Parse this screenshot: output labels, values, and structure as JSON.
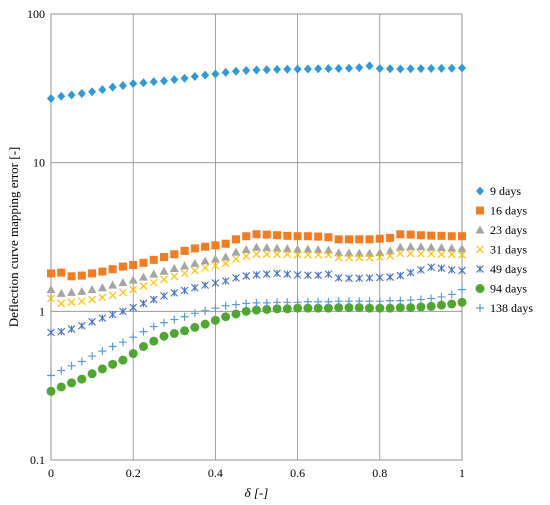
{
  "chart_data": {
    "type": "scatter",
    "xlabel": "δ [-]",
    "ylabel": "Deflection curve mapping error [-]",
    "xlim": [
      0,
      1
    ],
    "ylim": [
      0.1,
      100
    ],
    "yscale": "log",
    "x_ticks": [
      "0",
      "0.2",
      "0.4",
      "0.6",
      "0.8",
      "1"
    ],
    "y_ticks": [
      "0.1",
      "1",
      "10",
      "100"
    ],
    "grid": true,
    "legend_position": "right",
    "x": [
      0,
      0.025,
      0.05,
      0.075,
      0.1,
      0.125,
      0.15,
      0.175,
      0.2,
      0.225,
      0.25,
      0.275,
      0.3,
      0.325,
      0.35,
      0.375,
      0.4,
      0.425,
      0.45,
      0.475,
      0.5,
      0.525,
      0.55,
      0.575,
      0.6,
      0.625,
      0.65,
      0.675,
      0.7,
      0.725,
      0.75,
      0.775,
      0.8,
      0.825,
      0.85,
      0.875,
      0.9,
      0.925,
      0.95,
      0.975,
      1
    ],
    "series": [
      {
        "name": "9 days",
        "marker": "diamond",
        "color": "#2E9AD8",
        "values": [
          27,
          28,
          28.5,
          29.2,
          30,
          31,
          32.2,
          33,
          34,
          34.5,
          35,
          35.5,
          36.2,
          37,
          38,
          38.8,
          39.5,
          40.5,
          41.2,
          41.7,
          42,
          42.2,
          42.4,
          42.5,
          42.6,
          42.7,
          42.8,
          42.9,
          43,
          43.2,
          43.6,
          44.8,
          43,
          42.8,
          42.7,
          42.8,
          42.9,
          43,
          43.1,
          43.2,
          43.3
        ]
      },
      {
        "name": "16 days",
        "marker": "square",
        "color": "#F47B20",
        "values": [
          1.8,
          1.82,
          1.72,
          1.74,
          1.8,
          1.85,
          1.92,
          2.0,
          2.05,
          2.12,
          2.22,
          2.32,
          2.42,
          2.55,
          2.65,
          2.72,
          2.78,
          2.85,
          3.05,
          3.2,
          3.3,
          3.28,
          3.25,
          3.22,
          3.2,
          3.2,
          3.18,
          3.15,
          3.05,
          3.05,
          3.05,
          3.05,
          3.08,
          3.12,
          3.3,
          3.28,
          3.25,
          3.23,
          3.22,
          3.2,
          3.2
        ]
      },
      {
        "name": "23 days",
        "marker": "triangle",
        "color": "#A5A5A5",
        "values": [
          1.4,
          1.32,
          1.34,
          1.36,
          1.4,
          1.44,
          1.5,
          1.56,
          1.62,
          1.7,
          1.78,
          1.86,
          1.94,
          2.02,
          2.1,
          2.18,
          2.25,
          2.32,
          2.5,
          2.6,
          2.7,
          2.68,
          2.66,
          2.64,
          2.62,
          2.62,
          2.6,
          2.58,
          2.48,
          2.47,
          2.46,
          2.46,
          2.48,
          2.55,
          2.7,
          2.72,
          2.72,
          2.7,
          2.68,
          2.66,
          2.64
        ]
      },
      {
        "name": "31 days",
        "marker": "x",
        "color": "#FFC000",
        "values": [
          1.22,
          1.13,
          1.15,
          1.17,
          1.2,
          1.24,
          1.28,
          1.34,
          1.4,
          1.48,
          1.56,
          1.64,
          1.72,
          1.8,
          1.88,
          1.96,
          2.03,
          2.1,
          2.25,
          2.35,
          2.42,
          2.42,
          2.42,
          2.42,
          2.4,
          2.4,
          2.4,
          2.4,
          2.3,
          2.3,
          2.3,
          2.3,
          2.32,
          2.36,
          2.45,
          2.45,
          2.44,
          2.44,
          2.42,
          2.42,
          2.4
        ]
      },
      {
        "name": "49 days",
        "marker": "star",
        "color": "#4472C4",
        "values": [
          0.72,
          0.73,
          0.76,
          0.8,
          0.85,
          0.9,
          0.95,
          1.0,
          1.06,
          1.13,
          1.2,
          1.27,
          1.33,
          1.38,
          1.44,
          1.5,
          1.55,
          1.6,
          1.68,
          1.73,
          1.76,
          1.78,
          1.8,
          1.78,
          1.76,
          1.75,
          1.75,
          1.78,
          1.68,
          1.67,
          1.67,
          1.68,
          1.69,
          1.7,
          1.74,
          1.82,
          1.9,
          1.98,
          1.95,
          1.9,
          1.88
        ]
      },
      {
        "name": "94 days",
        "marker": "circle",
        "color": "#4EA72E",
        "values": [
          0.29,
          0.31,
          0.33,
          0.35,
          0.38,
          0.41,
          0.44,
          0.47,
          0.52,
          0.58,
          0.63,
          0.68,
          0.71,
          0.74,
          0.78,
          0.82,
          0.87,
          0.92,
          0.96,
          1.0,
          1.02,
          1.03,
          1.04,
          1.04,
          1.05,
          1.05,
          1.05,
          1.05,
          1.06,
          1.06,
          1.06,
          1.05,
          1.05,
          1.05,
          1.06,
          1.06,
          1.07,
          1.08,
          1.1,
          1.12,
          1.15
        ]
      },
      {
        "name": "138 days",
        "marker": "plus",
        "color": "#5B9BD5",
        "values": [
          0.37,
          0.4,
          0.43,
          0.46,
          0.5,
          0.54,
          0.58,
          0.62,
          0.67,
          0.73,
          0.79,
          0.84,
          0.88,
          0.92,
          0.97,
          1.01,
          1.05,
          1.09,
          1.11,
          1.13,
          1.14,
          1.14,
          1.15,
          1.15,
          1.15,
          1.16,
          1.16,
          1.16,
          1.17,
          1.17,
          1.17,
          1.17,
          1.17,
          1.18,
          1.18,
          1.19,
          1.2,
          1.22,
          1.25,
          1.3,
          1.4
        ]
      }
    ]
  }
}
